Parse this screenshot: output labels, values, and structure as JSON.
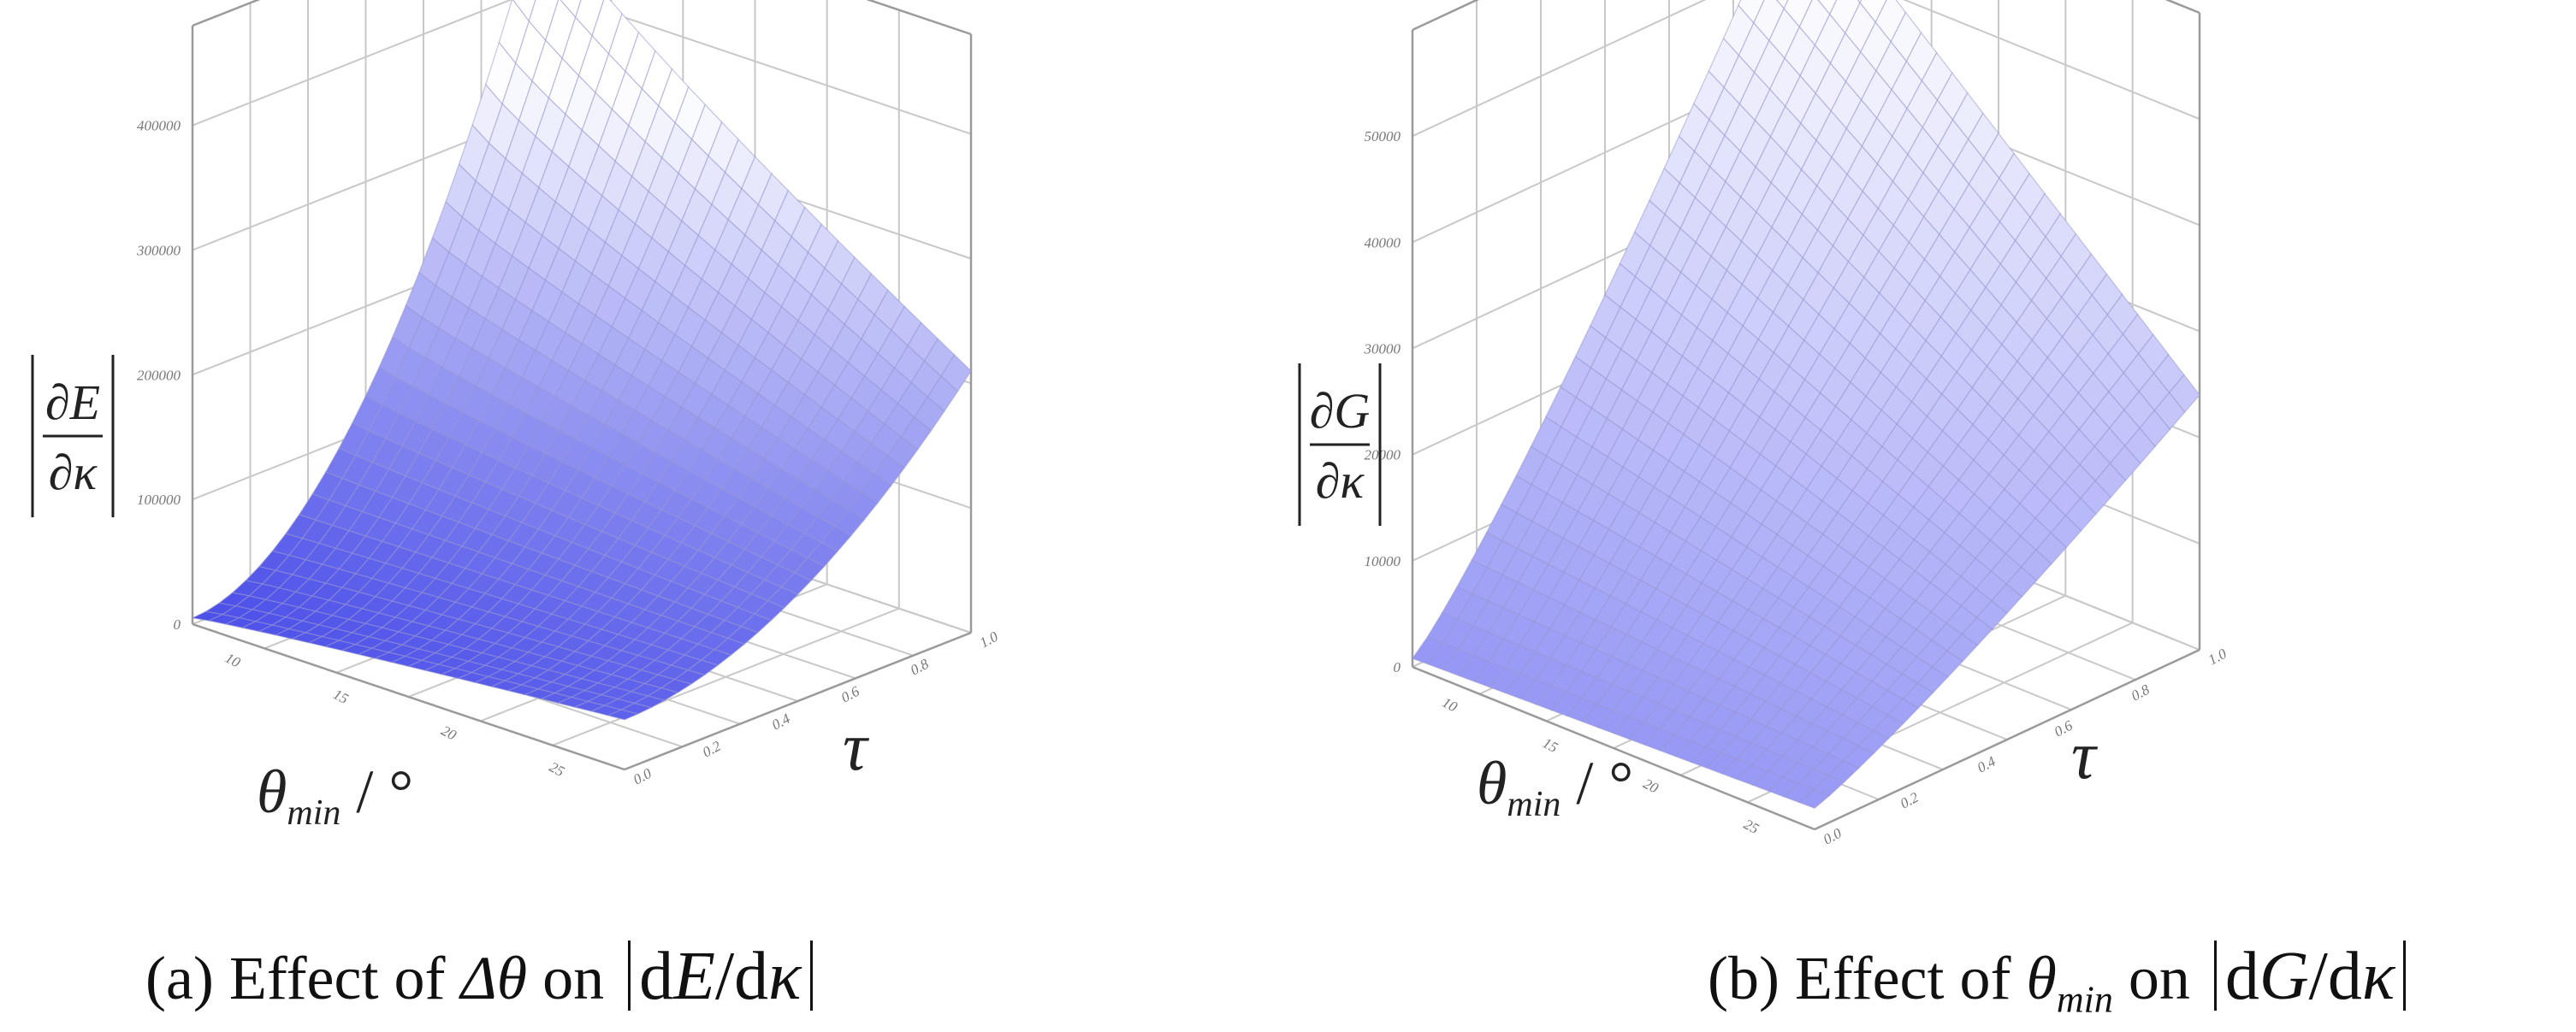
{
  "chart_data": [
    {
      "type": "surface",
      "panel": "a",
      "caption": {
        "prefix": "(a) Effect of ",
        "var_html": "Δθ",
        "mid": " on ",
        "expr_d1": "d",
        "expr_num": "E",
        "expr_slash": "/d",
        "expr_den": "κ"
      },
      "zlabel": {
        "num": "∂E",
        "den": "∂κ"
      },
      "xlabel": {
        "sym": "θ",
        "sub": "min",
        "unit": " / °"
      },
      "ylabel": "τ",
      "z_ticks": [
        "0",
        "100000",
        "200000",
        "300000",
        "400000"
      ],
      "x_ticks": [
        "10",
        "15",
        "20",
        "25"
      ],
      "y_ticks": [
        "0.0",
        "0.2",
        "0.4",
        "0.6",
        "0.8",
        "1.0"
      ],
      "z_range": [
        0,
        480000
      ],
      "x_range": [
        8,
        28
      ],
      "y_range": [
        0,
        1
      ],
      "color": "#3a3ee6",
      "light_color": "#ffffff",
      "corner_values": {
        "near_far": 5000,
        "far_low_tau": 40000,
        "far_high_tau": 465000,
        "near_high_tau": 210000
      },
      "shape": "convex"
    },
    {
      "type": "surface",
      "panel": "b",
      "caption": {
        "prefix": "(b) Effect of ",
        "var_html": "θmin",
        "mid": " on ",
        "expr_d1": "d",
        "expr_num": "G",
        "expr_slash": "/d",
        "expr_den": "κ"
      },
      "zlabel": {
        "num": "∂G",
        "den": "∂κ"
      },
      "xlabel": {
        "sym": "θ",
        "sub": "min",
        "unit": " / °"
      },
      "ylabel": "τ",
      "z_ticks": [
        "0",
        "10000",
        "20000",
        "30000",
        "40000",
        "50000"
      ],
      "x_ticks": [
        "10",
        "15",
        "20",
        "25"
      ],
      "y_ticks": [
        "0.0",
        "0.2",
        "0.4",
        "0.6",
        "0.8",
        "1.0"
      ],
      "z_range": [
        0,
        60000
      ],
      "x_range": [
        8,
        28
      ],
      "y_range": [
        0,
        1
      ],
      "color": "#6a6cf0",
      "light_color": "#ffffff",
      "corner_values": {
        "near_far": 800,
        "far_low_tau": 2000,
        "far_high_tau": 58000,
        "near_high_tau": 24000
      },
      "shape": "linear"
    }
  ]
}
